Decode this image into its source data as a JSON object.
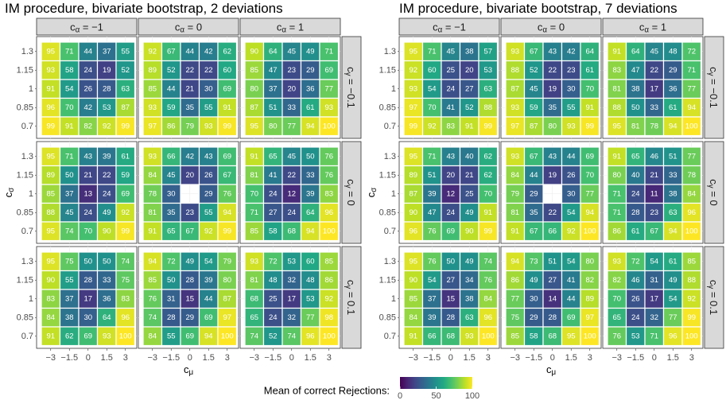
{
  "chart_data": [
    {
      "type": "heatmap",
      "title": "IM procedure, bivariate bootstrap, 2 deviations",
      "xlabel": "c_μ",
      "ylabel": "c_σ",
      "x_categories": [
        "-3",
        "-1.5",
        "0",
        "1.5",
        "3"
      ],
      "x_tick_labels": [
        "−3",
        "−1.5",
        "0",
        "1.5",
        "3"
      ],
      "y_categories": [
        "1.3",
        "1.15",
        "1",
        "0.85",
        "0.7"
      ],
      "col_facet_labels": [
        "c_α = −1",
        "c_α = 0",
        "c_α = 1"
      ],
      "row_facet_labels": [
        "c_γ = −0.1",
        "c_γ = 0",
        "c_γ = 0.1"
      ],
      "panels": [
        [
          [
            [
              95,
              71,
              44,
              37,
              55
            ],
            [
              93,
              58,
              24,
              19,
              52
            ],
            [
              91,
              54,
              26,
              28,
              63
            ],
            [
              96,
              70,
              42,
              53,
              87
            ],
            [
              99,
              91,
              82,
              92,
              99
            ]
          ],
          [
            [
              92,
              67,
              44,
              42,
              62
            ],
            [
              89,
              52,
              22,
              22,
              60
            ],
            [
              85,
              44,
              21,
              30,
              69
            ],
            [
              93,
              59,
              35,
              55,
              91
            ],
            [
              97,
              86,
              79,
              93,
              99
            ]
          ],
          [
            [
              90,
              64,
              45,
              49,
              71
            ],
            [
              85,
              47,
              23,
              29,
              69
            ],
            [
              80,
              37,
              20,
              36,
              77
            ],
            [
              87,
              51,
              33,
              61,
              93
            ],
            [
              95,
              80,
              77,
              94,
              100
            ]
          ]
        ],
        [
          [
            [
              95,
              71,
              43,
              39,
              61
            ],
            [
              89,
              50,
              21,
              22,
              59
            ],
            [
              85,
              37,
              13,
              24,
              69
            ],
            [
              88,
              45,
              24,
              49,
              92
            ],
            [
              95,
              74,
              70,
              90,
              99
            ]
          ],
          [
            [
              93,
              66,
              42,
              43,
              69
            ],
            [
              84,
              45,
              20,
              26,
              67
            ],
            [
              78,
              30,
              null,
              29,
              76
            ],
            [
              81,
              35,
              23,
              55,
              94
            ],
            [
              91,
              65,
              67,
              92,
              99
            ]
          ],
          [
            [
              91,
              65,
              45,
              50,
              76
            ],
            [
              81,
              41,
              22,
              33,
              76
            ],
            [
              70,
              24,
              12,
              39,
              83
            ],
            [
              71,
              27,
              24,
              64,
              96
            ],
            [
              85,
              58,
              68,
              94,
              100
            ]
          ]
        ],
        [
          [
            [
              95,
              75,
              50,
              50,
              74
            ],
            [
              90,
              55,
              28,
              33,
              75
            ],
            [
              83,
              37,
              17,
              36,
              83
            ],
            [
              84,
              38,
              30,
              64,
              96
            ],
            [
              91,
              62,
              69,
              93,
              100
            ]
          ],
          [
            [
              94,
              72,
              49,
              54,
              79
            ],
            [
              85,
              50,
              28,
              39,
              80
            ],
            [
              76,
              31,
              15,
              44,
              87
            ],
            [
              74,
              28,
              29,
              69,
              97
            ],
            [
              84,
              55,
              69,
              94,
              100
            ]
          ],
          [
            [
              93,
              72,
              53,
              60,
              85
            ],
            [
              81,
              48,
              32,
              48,
              86
            ],
            [
              68,
              25,
              17,
              53,
              92
            ],
            [
              65,
              24,
              32,
              77,
              98
            ],
            [
              74,
              52,
              74,
              96,
              100
            ]
          ]
        ]
      ]
    },
    {
      "type": "heatmap",
      "title": "IM procedure, bivariate bootstrap, 7 deviations",
      "xlabel": "c_μ",
      "ylabel": "c_σ",
      "x_categories": [
        "-3",
        "-1.5",
        "0",
        "1.5",
        "3"
      ],
      "x_tick_labels": [
        "−3",
        "−1.5",
        "0",
        "1.5",
        "3"
      ],
      "y_categories": [
        "1.3",
        "1.15",
        "1",
        "0.85",
        "0.7"
      ],
      "col_facet_labels": [
        "c_α = −1",
        "c_α = 0",
        "c_α = 1"
      ],
      "row_facet_labels": [
        "c_γ = −0.1",
        "c_γ = 0",
        "c_γ = 0.1"
      ],
      "panels": [
        [
          [
            [
              95,
              71,
              45,
              38,
              57
            ],
            [
              92,
              60,
              25,
              20,
              53
            ],
            [
              93,
              54,
              24,
              27,
              63
            ],
            [
              97,
              70,
              41,
              52,
              88
            ],
            [
              99,
              92,
              83,
              91,
              99
            ]
          ],
          [
            [
              93,
              67,
              43,
              42,
              64
            ],
            [
              88,
              52,
              22,
              23,
              61
            ],
            [
              87,
              45,
              19,
              30,
              70
            ],
            [
              93,
              59,
              35,
              55,
              91
            ],
            [
              97,
              87,
              80,
              93,
              99
            ]
          ],
          [
            [
              91,
              64,
              45,
              48,
              72
            ],
            [
              83,
              47,
              22,
              29,
              71
            ],
            [
              81,
              38,
              17,
              36,
              77
            ],
            [
              88,
              50,
              33,
              61,
              94
            ],
            [
              95,
              81,
              78,
              94,
              100
            ]
          ]
        ],
        [
          [
            [
              95,
              71,
              43,
              40,
              62
            ],
            [
              89,
              51,
              20,
              21,
              62
            ],
            [
              87,
              39,
              12,
              25,
              70
            ],
            [
              90,
              47,
              24,
              49,
              91
            ],
            [
              96,
              76,
              69,
              90,
              99
            ]
          ],
          [
            [
              93,
              67,
              43,
              44,
              69
            ],
            [
              84,
              44,
              19,
              26,
              70
            ],
            [
              79,
              29,
              null,
              30,
              77
            ],
            [
              81,
              35,
              22,
              54,
              94
            ],
            [
              91,
              67,
              66,
              92,
              100
            ]
          ],
          [
            [
              91,
              65,
              46,
              51,
              77
            ],
            [
              80,
              40,
              21,
              33,
              78
            ],
            [
              71,
              24,
              11,
              38,
              84
            ],
            [
              71,
              28,
              23,
              63,
              96
            ],
            [
              86,
              61,
              67,
              94,
              100
            ]
          ]
        ],
        [
          [
            [
              95,
              76,
              50,
              49,
              74
            ],
            [
              90,
              54,
              27,
              34,
              76
            ],
            [
              85,
              37,
              15,
              38,
              84
            ],
            [
              84,
              39,
              28,
              63,
              96
            ],
            [
              91,
              66,
              68,
              93,
              100
            ]
          ],
          [
            [
              94,
              73,
              51,
              54,
              80
            ],
            [
              86,
              49,
              27,
              41,
              82
            ],
            [
              77,
              30,
              14,
              44,
              89
            ],
            [
              75,
              29,
              28,
              69,
              97
            ],
            [
              85,
              58,
              68,
              95,
              100
            ]
          ],
          [
            [
              93,
              72,
              54,
              61,
              85
            ],
            [
              82,
              46,
              31,
              49,
              88
            ],
            [
              70,
              26,
              17,
              54,
              92
            ],
            [
              65,
              24,
              32,
              77,
              99
            ],
            [
              76,
              53,
              71,
              96,
              100
            ]
          ]
        ]
      ]
    }
  ],
  "legend": {
    "title": "Mean of correct Rejections:",
    "ticks": [
      "0",
      "50",
      "100"
    ],
    "colors": [
      "#440154",
      "#3b528b",
      "#21918c",
      "#5ec962",
      "#fde725"
    ],
    "limits": [
      0,
      100
    ]
  }
}
